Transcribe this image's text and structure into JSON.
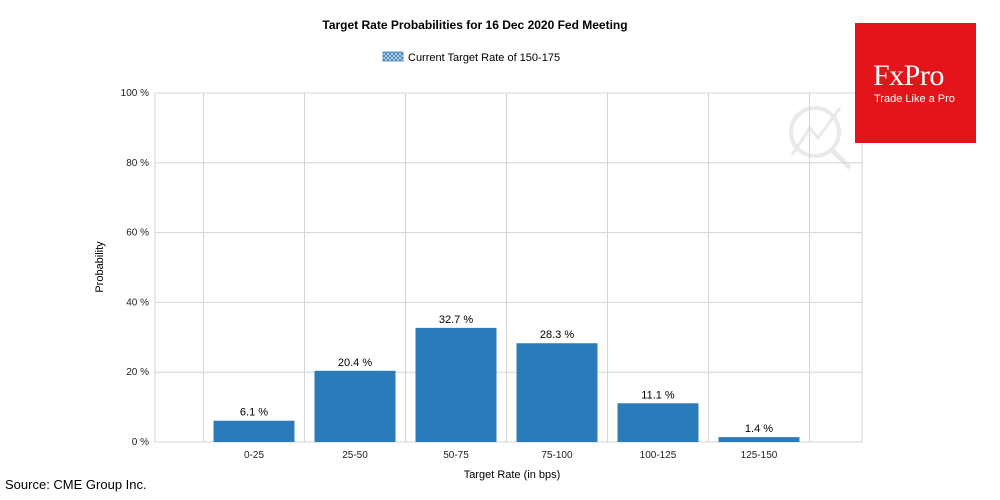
{
  "chart_data": {
    "type": "bar",
    "title": "Target Rate Probabilities for 16 Dec 2020 Fed Meeting",
    "xlabel": "Target Rate (in bps)",
    "ylabel": "Probability",
    "categories": [
      "0-25",
      "25-50",
      "50-75",
      "75-100",
      "100-125",
      "125-150"
    ],
    "values": [
      6.1,
      20.4,
      32.7,
      28.3,
      11.1,
      1.4
    ],
    "value_labels": [
      "6.1 %",
      "20.4 %",
      "32.7 %",
      "28.3 %",
      "11.1 %",
      "1.4 %"
    ],
    "ylim": [
      0,
      100
    ],
    "y_ticks": [
      0,
      20,
      40,
      60,
      80,
      100
    ],
    "y_tick_labels": [
      "0 %",
      "20 %",
      "40 %",
      "60 %",
      "80 %",
      "100 %"
    ],
    "legend": {
      "label": "Current Target Rate of 150-175",
      "placement": "top-center",
      "swatch_color": "#9fc6e6"
    },
    "grid": true,
    "bar_color": "#2b7bba"
  },
  "source": "Source: CME Group Inc.",
  "brand": {
    "name": "FxPro",
    "tagline": "Trade Like a Pro",
    "color": "#e3151a"
  }
}
